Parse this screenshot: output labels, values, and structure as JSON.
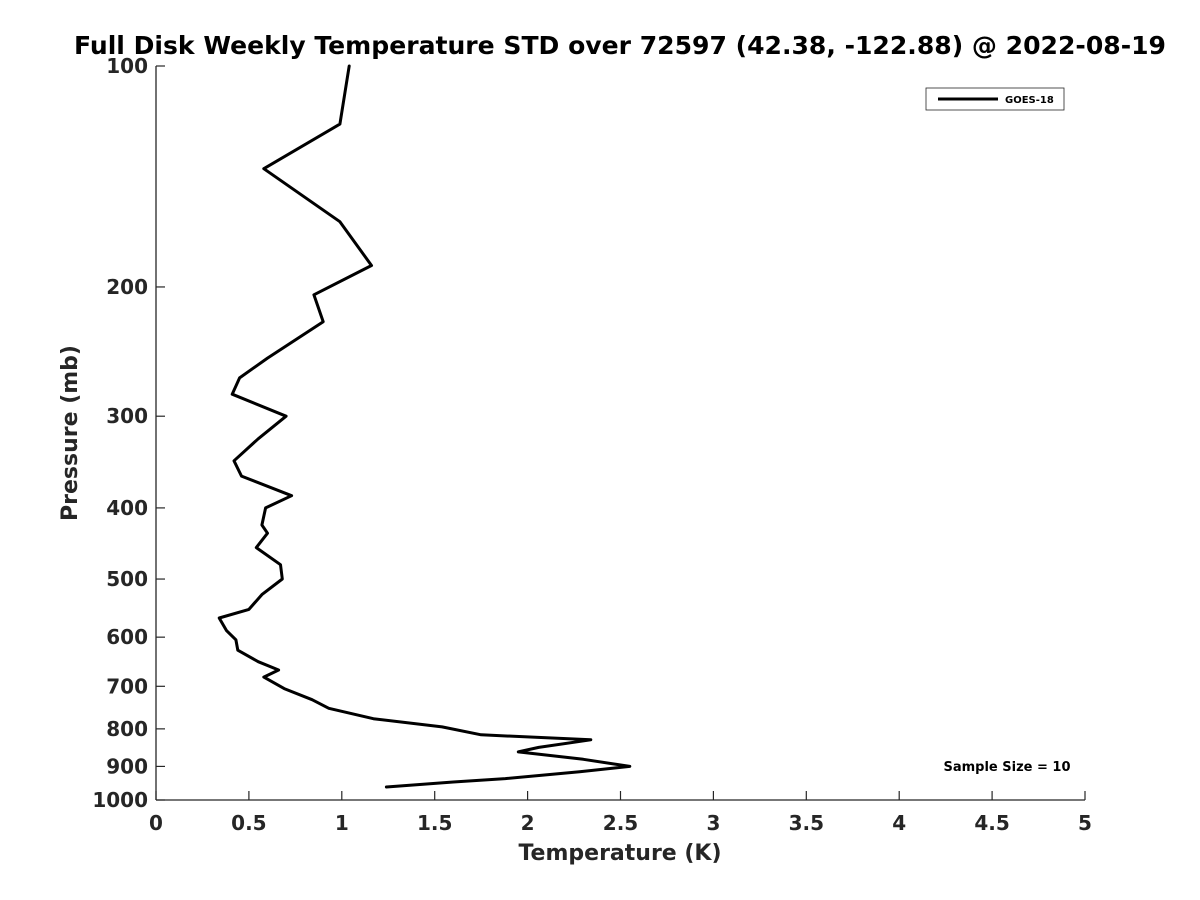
{
  "chart_data": {
    "type": "line",
    "title": "Full Disk Weekly Temperature STD over 72597 (42.38, -122.88) @ 2022-08-19",
    "xlabel": "Temperature (K)",
    "ylabel": "Pressure (mb)",
    "xlim": [
      0,
      5
    ],
    "ylim": [
      100,
      1000
    ],
    "y_scale": "log",
    "y_reversed": true,
    "grid": false,
    "legend_position": "top-right",
    "x_ticks": [
      "0",
      "0.5",
      "1",
      "1.5",
      "2",
      "2.5",
      "3",
      "3.5",
      "4",
      "4.5",
      "5"
    ],
    "y_ticks": [
      "100",
      "200",
      "300",
      "400",
      "500",
      "600",
      "700",
      "800",
      "900",
      "1000"
    ],
    "annotation": "Sample Size = 10",
    "series": [
      {
        "name": "GOES-18",
        "color": "#000000",
        "points": [
          [
            1.04,
            100
          ],
          [
            0.99,
            120
          ],
          [
            0.58,
            138
          ],
          [
            0.99,
            163
          ],
          [
            1.16,
            187
          ],
          [
            0.85,
            205
          ],
          [
            0.9,
            223
          ],
          [
            0.6,
            250
          ],
          [
            0.45,
            266
          ],
          [
            0.41,
            280
          ],
          [
            0.7,
            300
          ],
          [
            0.55,
            322
          ],
          [
            0.42,
            345
          ],
          [
            0.46,
            362
          ],
          [
            0.73,
            385
          ],
          [
            0.59,
            400
          ],
          [
            0.57,
            422
          ],
          [
            0.6,
            433
          ],
          [
            0.54,
            453
          ],
          [
            0.67,
            478
          ],
          [
            0.68,
            500
          ],
          [
            0.57,
            525
          ],
          [
            0.5,
            550
          ],
          [
            0.34,
            565
          ],
          [
            0.38,
            588
          ],
          [
            0.43,
            605
          ],
          [
            0.44,
            625
          ],
          [
            0.55,
            648
          ],
          [
            0.66,
            665
          ],
          [
            0.58,
            680
          ],
          [
            0.69,
            705
          ],
          [
            0.84,
            730
          ],
          [
            0.93,
            750
          ],
          [
            1.17,
            775
          ],
          [
            1.54,
            795
          ],
          [
            1.75,
            815
          ],
          [
            2.34,
            828
          ],
          [
            2.06,
            848
          ],
          [
            1.95,
            860
          ],
          [
            2.3,
            880
          ],
          [
            2.55,
            900
          ],
          [
            2.28,
            915
          ],
          [
            1.88,
            935
          ],
          [
            1.6,
            945
          ],
          [
            1.24,
            960
          ]
        ]
      }
    ]
  }
}
